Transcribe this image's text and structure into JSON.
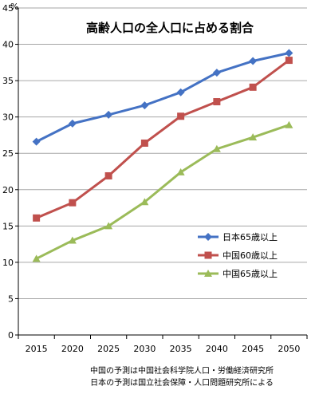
{
  "chart_data": {
    "type": "line",
    "title": "高齢人口の全人口に占める割合",
    "ylabel": "%",
    "x": [
      "2015",
      "2020",
      "2025",
      "2030",
      "2035",
      "2040",
      "2045",
      "2050"
    ],
    "ylim": [
      0,
      45
    ],
    "yticks": [
      "0",
      "5",
      "10",
      "15",
      "20",
      "25",
      "30",
      "35",
      "40",
      "45"
    ],
    "grid": true,
    "legend_position": "right",
    "series": [
      {
        "name": "日本65歳以上",
        "values": [
          26.6,
          29.1,
          30.3,
          31.6,
          33.4,
          36.1,
          37.7,
          38.8
        ],
        "color": "#4472C4",
        "marker": "diamond"
      },
      {
        "name": "中国60歳以上",
        "values": [
          16.1,
          18.2,
          21.9,
          26.4,
          30.1,
          32.1,
          34.1,
          37.8
        ],
        "color": "#C0504D",
        "marker": "square"
      },
      {
        "name": "中国65歳以上",
        "values": [
          10.5,
          13.0,
          15.0,
          18.3,
          22.4,
          25.6,
          27.2,
          28.9
        ],
        "color": "#9BBB59",
        "marker": "triangle"
      }
    ]
  },
  "notes": [
    "中国の予測は中国社会科学院人口・労働経済研究所",
    "日本の予測は国立社会保障・人口問題研究所による"
  ]
}
